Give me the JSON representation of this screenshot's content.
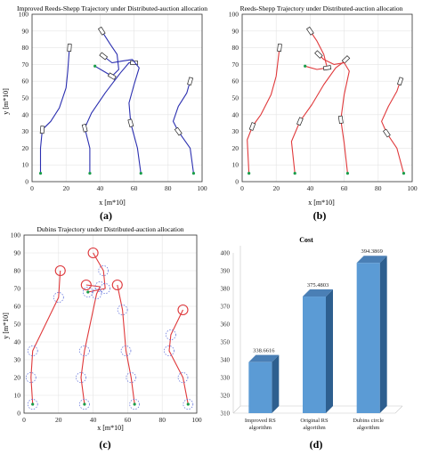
{
  "panels": [
    {
      "id": "a",
      "label": "(a)",
      "title": "Improved Reeds-Shepp Trajectory under Distributed-auction allocation",
      "xlabel": "x [m*10]",
      "ylabel": "y [m*10]",
      "color": "#2b2fb0",
      "show_ylabel": true
    },
    {
      "id": "b",
      "label": "(b)",
      "title": "Reeds-Shepp Trajectory under Distributed-auction allocation",
      "xlabel": "x [m*10]",
      "ylabel": "y [m*10]",
      "color": "#e0393b",
      "show_ylabel": false
    },
    {
      "id": "c",
      "label": "(c)",
      "title": "Dubins Trajectory under Distributed-auction allocation",
      "xlabel": "x [m*10]",
      "ylabel": "y [m*10]",
      "color": "#e0393b",
      "show_ylabel": true
    },
    {
      "id": "d",
      "label": "(d)",
      "title": "Cost",
      "bar_color": "#5b9bd5"
    }
  ],
  "chart_data": [
    {
      "type": "line",
      "panel": "a",
      "xlim": [
        0,
        100
      ],
      "ylim": [
        0,
        100
      ],
      "xticks": [
        0,
        20,
        40,
        60,
        80,
        100
      ],
      "yticks": [
        0,
        10,
        20,
        30,
        40,
        50,
        60,
        70,
        80,
        90,
        100
      ],
      "grid": true,
      "series": [
        {
          "x": [
            5,
            5,
            6,
            11,
            16,
            20,
            21,
            22
          ],
          "y": [
            5,
            20,
            31,
            36,
            44,
            56,
            66,
            80
          ]
        },
        {
          "x": [
            34,
            34,
            31,
            35,
            43,
            52,
            57,
            60
          ],
          "y": [
            5,
            20,
            32,
            41,
            53,
            65,
            71,
            71
          ]
        },
        {
          "x": [
            64,
            62,
            58,
            57,
            60,
            63,
            59,
            53,
            47,
            42
          ],
          "y": [
            5,
            20,
            35,
            47,
            58,
            68,
            73,
            72,
            71,
            75
          ]
        },
        {
          "x": [
            37,
            42,
            47,
            51,
            50,
            46,
            41
          ],
          "y": [
            69,
            66,
            63,
            67,
            76,
            82,
            90
          ]
        },
        {
          "x": [
            95,
            93,
            86,
            83,
            86,
            91,
            93
          ],
          "y": [
            5,
            20,
            30,
            36,
            45,
            53,
            60
          ]
        }
      ]
    },
    {
      "type": "line",
      "panel": "b",
      "xlim": [
        0,
        100
      ],
      "ylim": [
        0,
        100
      ],
      "xticks": [
        0,
        20,
        40,
        60,
        80,
        100
      ],
      "yticks": [
        0,
        10,
        20,
        30,
        40,
        50,
        60,
        70,
        80,
        90,
        100
      ],
      "grid": true,
      "series": [
        {
          "x": [
            4,
            3,
            6,
            11,
            17,
            20,
            22
          ],
          "y": [
            5,
            25,
            33,
            40,
            52,
            63,
            80
          ]
        },
        {
          "x": [
            31,
            29,
            34,
            41,
            48,
            55,
            59,
            61
          ],
          "y": [
            5,
            24,
            36,
            46,
            58,
            68,
            71,
            73
          ]
        },
        {
          "x": [
            62,
            60,
            58,
            60,
            63,
            60,
            54,
            48,
            45
          ],
          "y": [
            5,
            23,
            37,
            52,
            66,
            71,
            70,
            73,
            76
          ]
        },
        {
          "x": [
            37,
            44,
            50,
            48,
            44,
            40
          ],
          "y": [
            69,
            67,
            68,
            76,
            84,
            90
          ]
        },
        {
          "x": [
            95,
            91,
            85,
            82,
            86,
            91,
            93
          ],
          "y": [
            5,
            20,
            29,
            36,
            45,
            54,
            60
          ]
        }
      ]
    },
    {
      "type": "line",
      "panel": "c",
      "xlim": [
        0,
        100
      ],
      "ylim": [
        0,
        100
      ],
      "xticks": [
        0,
        20,
        40,
        60,
        80,
        100
      ],
      "yticks": [
        0,
        10,
        20,
        30,
        40,
        50,
        60,
        70,
        80,
        90,
        100
      ],
      "grid": true,
      "series": [
        {
          "x": [
            5,
            4,
            5,
            20,
            21
          ],
          "y": [
            5,
            20,
            35,
            65,
            80
          ]
        },
        {
          "x": [
            35,
            33,
            35,
            42,
            44,
            36
          ],
          "y": [
            5,
            20,
            35,
            67,
            71,
            72
          ]
        },
        {
          "x": [
            64,
            62,
            59,
            57,
            54
          ],
          "y": [
            5,
            20,
            35,
            58,
            72
          ]
        },
        {
          "x": [
            37,
            47,
            46,
            40
          ],
          "y": [
            68,
            70,
            80,
            90
          ]
        },
        {
          "x": [
            95,
            92,
            84,
            85,
            92
          ],
          "y": [
            5,
            20,
            35,
            44,
            58
          ]
        }
      ]
    },
    {
      "type": "bar",
      "panel": "d",
      "title": "Cost",
      "categories": [
        "Improved RS algorithm",
        "Original RS algorithm",
        "Dubins circle algorithm"
      ],
      "values": [
        338.6616,
        375.4803,
        394.3869
      ],
      "value_labels": [
        "338.6616",
        "375.4803",
        "394.3869"
      ],
      "ylim": [
        310,
        400
      ],
      "yticks": [
        310,
        320,
        330,
        340,
        350,
        360,
        370,
        380,
        390,
        400
      ],
      "grid": false
    }
  ]
}
